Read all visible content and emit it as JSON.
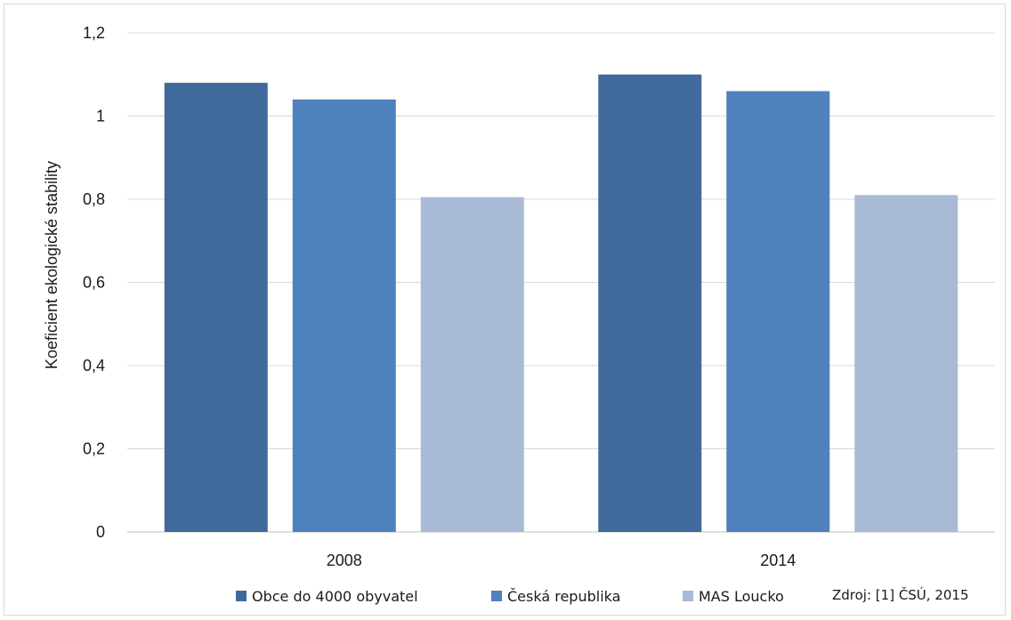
{
  "chart_data": {
    "type": "bar",
    "categories": [
      "2008",
      "2014"
    ],
    "series": [
      {
        "name": "Obce do 4000 obyvatel",
        "color": "#3f6a9b",
        "values": [
          1.08,
          1.1
        ]
      },
      {
        "name": "Česká republika",
        "color": "#4f81bd",
        "values": [
          1.04,
          1.06
        ]
      },
      {
        "name": "MAS Loucko",
        "color": "#a9bad6",
        "values": [
          0.805,
          0.81
        ]
      }
    ],
    "ylabel": "Koeficient ekologické stability",
    "xlabel": "",
    "title": "",
    "ylim": [
      0,
      1.2
    ],
    "yticks": [
      "0",
      "0,2",
      "0,4",
      "0,6",
      "0,8",
      "1",
      "1,2"
    ],
    "grid": true,
    "legend_position": "bottom",
    "source_note": "Zdroj: [1] ČSÚ, 2015"
  }
}
